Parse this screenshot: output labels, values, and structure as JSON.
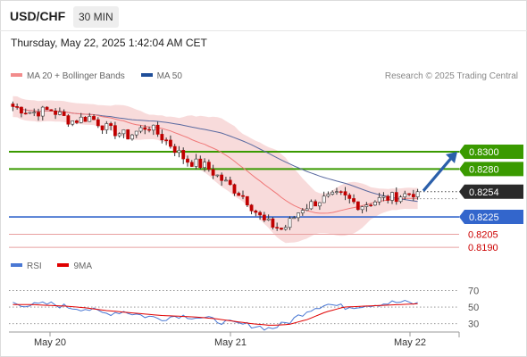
{
  "header": {
    "symbol": "USD/CHF",
    "timeframe": "30 MIN",
    "timestamp": "Thursday, May 22, 2025 1:42:04 AM CET"
  },
  "legend": {
    "items": [
      {
        "label": "MA 20 + Bollinger Bands",
        "color": "#f28c8c"
      },
      {
        "label": "MA 50",
        "color": "#1f4e99"
      }
    ],
    "credit": "Research © 2025 Trading Central"
  },
  "rsi_legend": {
    "items": [
      {
        "label": "RSI",
        "color": "#4a78d4"
      },
      {
        "label": "9MA",
        "color": "#e00000"
      }
    ]
  },
  "colors": {
    "up": "#ffffff",
    "down": "#c00000",
    "resistance": "#3a9a00",
    "pivot": "#3366cc",
    "support": "#e8a0a0",
    "band": "#f7d5d5",
    "ma20": "#f07878",
    "ma50": "#5a6aa0",
    "arrow": "#2b5faa"
  },
  "chart_data": [
    {
      "type": "candlestick",
      "title": "USD/CHF",
      "timeframe": "30 MIN",
      "x_tick_labels": [
        "May 20",
        "May 21",
        "May 22"
      ],
      "price_levels": [
        {
          "price": 0.83,
          "label": "0.8300",
          "kind": "resistance"
        },
        {
          "price": 0.828,
          "label": "0.8280",
          "kind": "resistance"
        },
        {
          "price": 0.8254,
          "label": "0.8254",
          "kind": "last"
        },
        {
          "price": 0.8225,
          "label": "0.8225",
          "kind": "pivot"
        },
        {
          "price": 0.8205,
          "label": "0.8205",
          "kind": "support"
        },
        {
          "price": 0.819,
          "label": "0.8190",
          "kind": "support"
        }
      ],
      "price_key": [
        {
          "close": 0.8352
        },
        {
          "close": 0.8345
        },
        {
          "close": 0.8348
        },
        {
          "close": 0.8335
        },
        {
          "close": 0.834
        },
        {
          "close": 0.8325
        },
        {
          "close": 0.8318
        },
        {
          "close": 0.833
        },
        {
          "close": 0.8312
        },
        {
          "close": 0.829
        },
        {
          "close": 0.8283
        },
        {
          "close": 0.8265
        },
        {
          "close": 0.8248
        },
        {
          "close": 0.822
        },
        {
          "close": 0.821
        },
        {
          "close": 0.8235
        },
        {
          "close": 0.8245
        },
        {
          "close": 0.825
        },
        {
          "close": 0.8238
        },
        {
          "close": 0.8245
        },
        {
          "close": 0.8249
        },
        {
          "close": 0.8254
        }
      ],
      "forecast_arrow": {
        "from_price": 0.8255,
        "to_price": 0.83
      },
      "ylim": [
        0.8185,
        0.838
      ]
    },
    {
      "type": "line",
      "title": "RSI",
      "y_ticks": [
        30,
        50,
        70
      ],
      "ylim": [
        20,
        78
      ],
      "series": [
        {
          "name": "RSI",
          "values": [
            55,
            52,
            54,
            50,
            48,
            42,
            45,
            40,
            36,
            40,
            38,
            34,
            30,
            28,
            24,
            32,
            46,
            54,
            50,
            52,
            54,
            56,
            54
          ]
        },
        {
          "name": "9MA",
          "values": [
            53,
            53,
            52,
            51,
            49,
            46,
            44,
            42,
            40,
            39,
            38,
            36,
            33,
            30,
            28,
            29,
            35,
            44,
            50,
            51,
            52,
            53,
            54
          ]
        }
      ]
    }
  ]
}
